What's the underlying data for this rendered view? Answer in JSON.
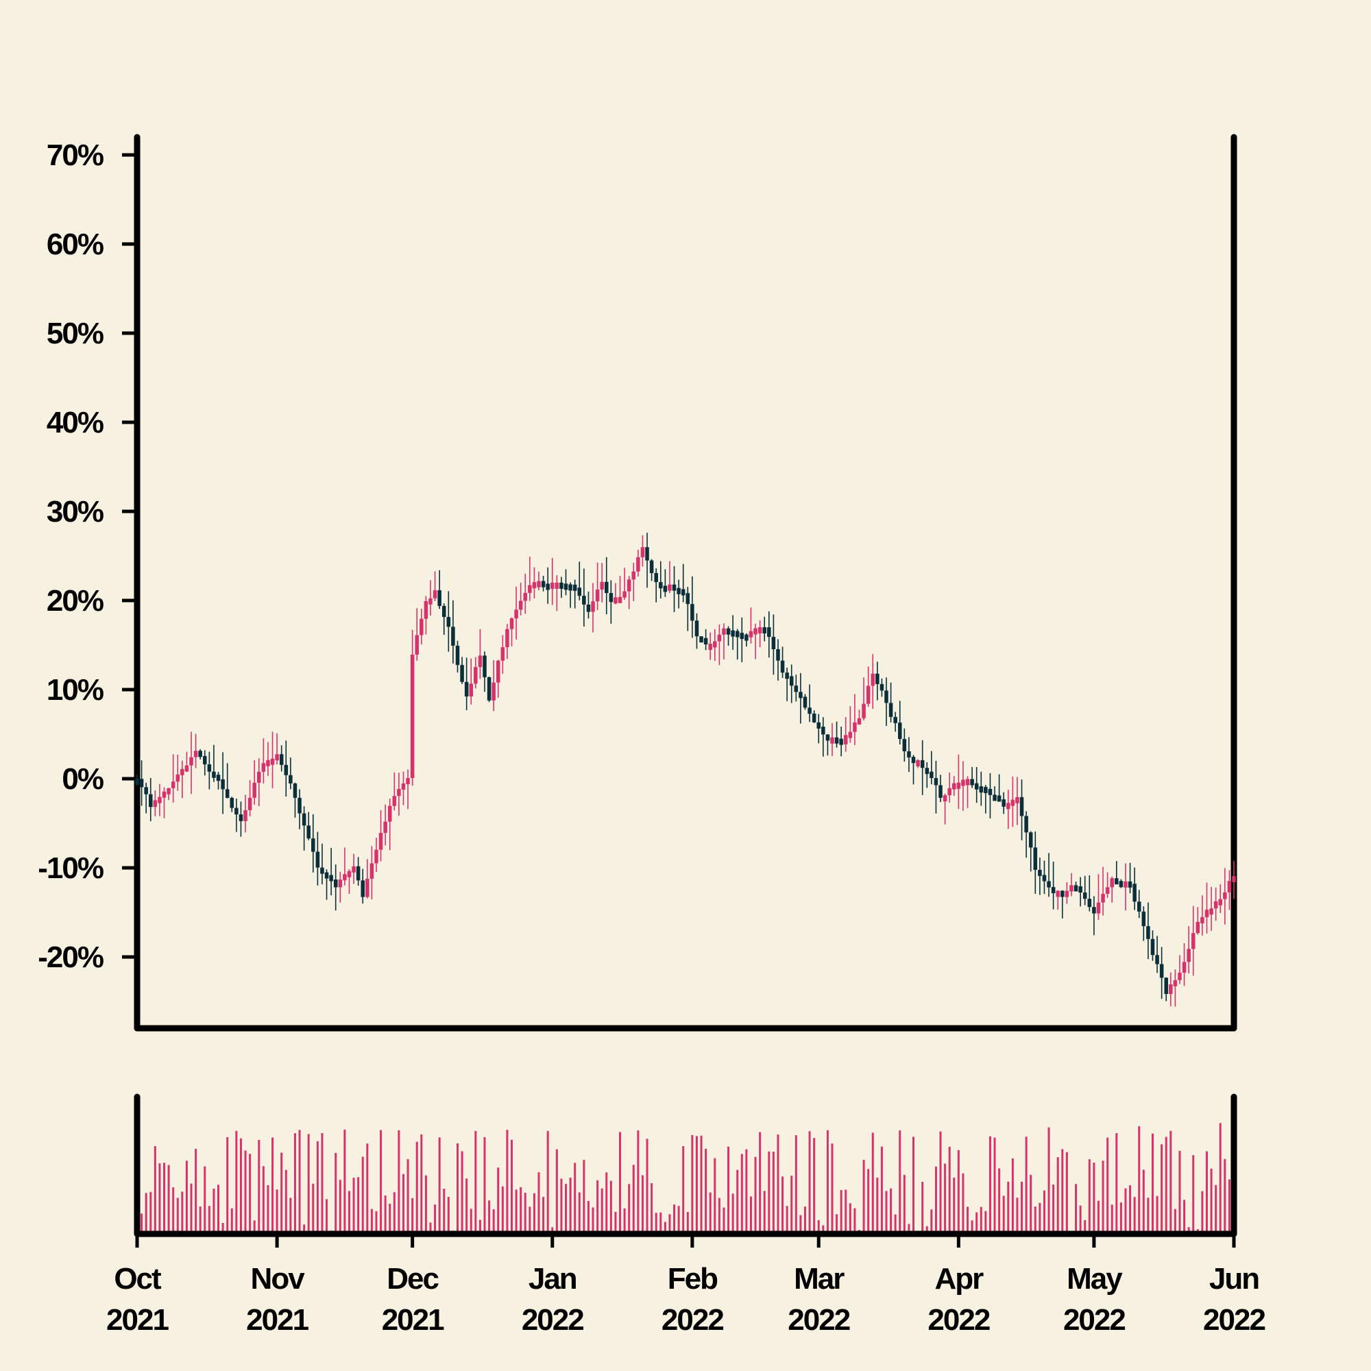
{
  "chart_data": {
    "type": "candlestick",
    "title": "",
    "xlabel": "",
    "ylabel": "",
    "ylim": [
      -28,
      72
    ],
    "y_ticks": [
      -20,
      -10,
      0,
      10,
      20,
      30,
      40,
      50,
      60,
      70
    ],
    "y_tick_labels": [
      "-20%",
      "-10%",
      "0%",
      "10%",
      "20%",
      "30%",
      "40%",
      "50%",
      "60%",
      "70%"
    ],
    "x_range": [
      "2021-10-01",
      "2022-06-01"
    ],
    "x_ticks": [
      "2021-10-01",
      "2021-11-01",
      "2021-12-01",
      "2022-01-01",
      "2022-02-01",
      "2022-03-01",
      "2022-04-01",
      "2022-05-01",
      "2022-06-01"
    ],
    "x_tick_labels": [
      [
        "Oct",
        "2021"
      ],
      [
        "Nov",
        "2021"
      ],
      [
        "Dec",
        "2021"
      ],
      [
        "Jan",
        "2022"
      ],
      [
        "Feb",
        "2022"
      ],
      [
        "Mar",
        "2022"
      ],
      [
        "Apr",
        "2022"
      ],
      [
        "May",
        "2022"
      ],
      [
        "Jun",
        "2022"
      ]
    ],
    "grid": false,
    "colors": {
      "up": "#d6336c",
      "down": "#0b2f3a",
      "volume": "#d6336c",
      "frame": "#000000",
      "background": "#f6f1e1"
    },
    "close_anchors": [
      [
        "2021-10-01",
        0
      ],
      [
        "2021-10-04",
        -3
      ],
      [
        "2021-10-08",
        -1
      ],
      [
        "2021-10-14",
        3
      ],
      [
        "2021-10-20",
        -1
      ],
      [
        "2021-10-24",
        -5
      ],
      [
        "2021-10-28",
        1
      ],
      [
        "2021-11-01",
        3
      ],
      [
        "2021-11-05",
        -2
      ],
      [
        "2021-11-10",
        -10
      ],
      [
        "2021-11-14",
        -12
      ],
      [
        "2021-11-18",
        -10
      ],
      [
        "2021-11-20",
        -13
      ],
      [
        "2021-11-24",
        -6
      ],
      [
        "2021-11-27",
        -2
      ],
      [
        "2021-11-30",
        0
      ],
      [
        "2021-12-01",
        14
      ],
      [
        "2021-12-04",
        20
      ],
      [
        "2021-12-06",
        21
      ],
      [
        "2021-12-09",
        17
      ],
      [
        "2021-12-13",
        9
      ],
      [
        "2021-12-16",
        14
      ],
      [
        "2021-12-18",
        9
      ],
      [
        "2021-12-22",
        17
      ],
      [
        "2021-12-27",
        22
      ],
      [
        "2022-01-05",
        22
      ],
      [
        "2022-01-09",
        19
      ],
      [
        "2022-01-12",
        22
      ],
      [
        "2022-01-14",
        20
      ],
      [
        "2022-01-17",
        21
      ],
      [
        "2022-01-21",
        26
      ],
      [
        "2022-01-24",
        22
      ],
      [
        "2022-01-30",
        21
      ],
      [
        "2022-02-02",
        16
      ],
      [
        "2022-02-05",
        15
      ],
      [
        "2022-02-08",
        17
      ],
      [
        "2022-02-12",
        16
      ],
      [
        "2022-02-17",
        17
      ],
      [
        "2022-02-21",
        12
      ],
      [
        "2022-02-25",
        9
      ],
      [
        "2022-03-02",
        5
      ],
      [
        "2022-03-06",
        4
      ],
      [
        "2022-03-10",
        7
      ],
      [
        "2022-03-13",
        12
      ],
      [
        "2022-03-18",
        6
      ],
      [
        "2022-03-20",
        3
      ],
      [
        "2022-03-25",
        1
      ],
      [
        "2022-03-28",
        -2
      ],
      [
        "2022-04-02",
        0
      ],
      [
        "2022-04-07",
        -1
      ],
      [
        "2022-04-11",
        -3
      ],
      [
        "2022-04-14",
        -2
      ],
      [
        "2022-04-18",
        -10
      ],
      [
        "2022-04-22",
        -13
      ],
      [
        "2022-04-27",
        -12
      ],
      [
        "2022-05-01",
        -15
      ],
      [
        "2022-05-05",
        -11
      ],
      [
        "2022-05-09",
        -12
      ],
      [
        "2022-05-13",
        -18
      ],
      [
        "2022-05-17",
        -24
      ],
      [
        "2022-05-20",
        -22
      ],
      [
        "2022-05-24",
        -16
      ],
      [
        "2022-05-28",
        -14
      ],
      [
        "2022-06-01",
        -11
      ]
    ]
  }
}
